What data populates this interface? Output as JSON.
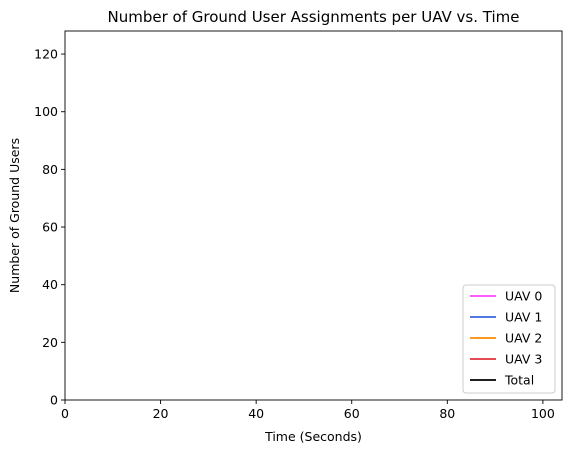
{
  "chart_data": {
    "type": "line",
    "title": "Number of Ground User Assignments per UAV vs. Time",
    "xlabel": "Time (Seconds)",
    "ylabel": "Number of Ground Users",
    "xlim": [
      0,
      104
    ],
    "ylim": [
      0,
      128
    ],
    "xticks": [
      0,
      20,
      40,
      60,
      80,
      100
    ],
    "yticks": [
      0,
      20,
      40,
      60,
      80,
      100,
      120
    ],
    "grid": false,
    "legend_position": "lower-right",
    "series": [
      {
        "name": "UAV 0",
        "color": "#ff44ff",
        "x": [],
        "y": []
      },
      {
        "name": "UAV 1",
        "color": "#3a66d8",
        "x": [],
        "y": []
      },
      {
        "name": "UAV 2",
        "color": "#ff8c00",
        "x": [],
        "y": []
      },
      {
        "name": "UAV 3",
        "color": "#e0303a",
        "x": [],
        "y": []
      },
      {
        "name": "Total",
        "color": "#000000",
        "x": [],
        "y": []
      }
    ]
  }
}
